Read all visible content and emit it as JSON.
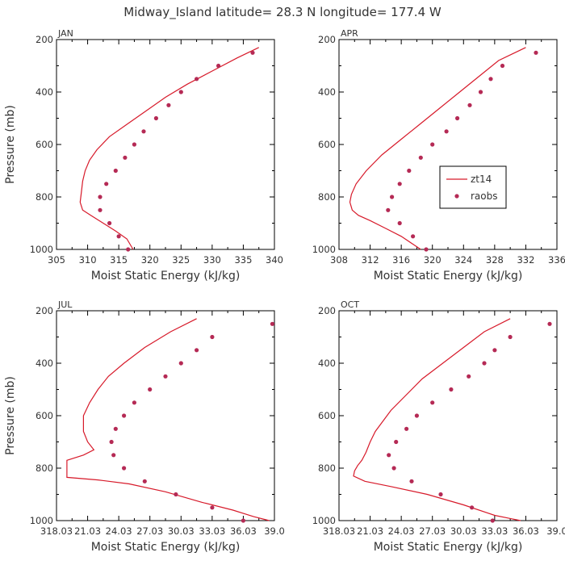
{
  "title": "Midway_Island  latitude= 28.3 N longitude= 177.4 W",
  "legend": {
    "model": "zt14",
    "obs": "raobs",
    "panel": 1
  },
  "colors": {
    "model": "#d71a2a",
    "obs": "#b52a55"
  },
  "chart_data": [
    {
      "type": "line",
      "panel": "JAN",
      "xlabel": "Moist Static Energy (kJ/kg)",
      "ylabel": "Pressure (mb)",
      "xlim": [
        305,
        340
      ],
      "xticks": [
        305,
        310,
        315,
        320,
        325,
        330,
        335,
        340
      ],
      "xtick_labels": [
        "305",
        "310",
        "315",
        "320",
        "325",
        "330",
        "335",
        "340"
      ],
      "ylim": [
        200,
        1000
      ],
      "yticks": [
        200,
        400,
        600,
        800,
        1000
      ],
      "ytick_labels": [
        "200",
        "400",
        "600",
        "800",
        "1000"
      ],
      "series": [
        {
          "name": "zt14",
          "kind": "line",
          "x": [
            337.5,
            334,
            330,
            326,
            322.5,
            319.5,
            316.5,
            313.5,
            311.5,
            310.3,
            309.6,
            309.2,
            309.0,
            308.8,
            309.2,
            310.5,
            312.5,
            314.5,
            316.3,
            317.3
          ],
          "y": [
            230,
            270,
            320,
            370,
            420,
            470,
            520,
            570,
            620,
            660,
            700,
            740,
            780,
            820,
            850,
            870,
            900,
            930,
            960,
            1000
          ]
        },
        {
          "name": "raobs",
          "kind": "scatter",
          "x": [
            336.5,
            331,
            327.5,
            325,
            323,
            321,
            319,
            317.5,
            316,
            314.5,
            313,
            312,
            312,
            313.5,
            315,
            316.5
          ],
          "y": [
            250,
            300,
            350,
            400,
            450,
            500,
            550,
            600,
            650,
            700,
            750,
            800,
            850,
            900,
            950,
            1000
          ]
        }
      ]
    },
    {
      "type": "line",
      "panel": "APR",
      "xlabel": "Moist Static Energy (kJ/kg)",
      "ylabel": "",
      "xlim": [
        308,
        336
      ],
      "xticks": [
        308,
        312,
        316,
        320,
        324,
        328,
        332,
        336
      ],
      "xtick_labels": [
        "308",
        "312",
        "316",
        "320",
        "324",
        "328",
        "332",
        "336"
      ],
      "ylim": [
        200,
        1000
      ],
      "yticks": [
        200,
        400,
        600,
        800,
        1000
      ],
      "ytick_labels": [
        "200",
        "400",
        "600",
        "800",
        "1000"
      ],
      "series": [
        {
          "name": "zt14",
          "kind": "line",
          "x": [
            332,
            328.5,
            326,
            323.5,
            321,
            318.5,
            316,
            313.5,
            311.5,
            310.2,
            309.6,
            309.4,
            309.7,
            310.5,
            312,
            314,
            316,
            317.5,
            318.5
          ],
          "y": [
            230,
            280,
            340,
            400,
            460,
            520,
            580,
            640,
            700,
            750,
            790,
            820,
            850,
            870,
            890,
            920,
            950,
            980,
            1000
          ]
        },
        {
          "name": "raobs",
          "kind": "scatter",
          "x": [
            333.3,
            329,
            327.5,
            326.2,
            324.8,
            323.2,
            321.8,
            320,
            318.5,
            317,
            315.8,
            314.8,
            314.3,
            315.8,
            317.5,
            319.2
          ],
          "y": [
            250,
            300,
            350,
            400,
            450,
            500,
            550,
            600,
            650,
            700,
            750,
            800,
            850,
            900,
            950,
            1000
          ]
        }
      ]
    },
    {
      "type": "line",
      "panel": "JUL",
      "xlabel": "Moist Static Energy (kJ/kg)",
      "ylabel": "Pressure (mb)",
      "xlim": [
        318.0,
        339.0
      ],
      "xticks": [
        318.0,
        321.0,
        324.0,
        327.0,
        330.0,
        333.0,
        336.0,
        339.0
      ],
      "xtick_labels": [
        "318.03",
        "21.03",
        "24.03",
        "27.03",
        "30.03",
        "33.03",
        "36.03",
        "39.0"
      ],
      "ylim": [
        200,
        1000
      ],
      "yticks": [
        200,
        400,
        600,
        800,
        1000
      ],
      "ytick_labels": [
        "200",
        "400",
        "600",
        "800",
        "1000"
      ],
      "series": [
        {
          "name": "zt14",
          "kind": "line",
          "x": [
            331.5,
            329,
            326.5,
            324.5,
            323,
            322,
            321.2,
            320.6,
            320.6,
            321.0,
            321.6,
            320.6,
            319.0,
            319.0,
            322.0,
            325.0,
            328.5,
            332,
            335,
            337,
            338.5
          ],
          "y": [
            230,
            280,
            340,
            400,
            450,
            500,
            550,
            600,
            660,
            700,
            730,
            750,
            770,
            835,
            845,
            860,
            890,
            930,
            960,
            985,
            1000
          ]
        },
        {
          "name": "raobs",
          "kind": "scatter",
          "x": [
            338.8,
            333.0,
            331.5,
            330.0,
            328.5,
            327.0,
            325.5,
            324.5,
            323.7,
            323.3,
            323.5,
            324.5,
            326.5,
            329.5,
            333.0,
            336.0
          ],
          "y": [
            250,
            300,
            350,
            400,
            450,
            500,
            550,
            600,
            650,
            700,
            750,
            800,
            850,
            900,
            950,
            1000
          ]
        }
      ]
    },
    {
      "type": "line",
      "panel": "OCT",
      "xlabel": "Moist Static Energy (kJ/kg)",
      "ylabel": "",
      "xlim": [
        318.0,
        339.0
      ],
      "xticks": [
        318.0,
        321.0,
        324.0,
        327.0,
        330.0,
        333.0,
        336.0,
        339.0
      ],
      "xtick_labels": [
        "318.03",
        "21.03",
        "24.03",
        "27.03",
        "30.03",
        "33.03",
        "36.03",
        "39.0"
      ],
      "ylim": [
        200,
        1000
      ],
      "yticks": [
        200,
        400,
        600,
        800,
        1000
      ],
      "ytick_labels": [
        "200",
        "400",
        "600",
        "800",
        "1000"
      ],
      "series": [
        {
          "name": "zt14",
          "kind": "line",
          "x": [
            334.5,
            332,
            330,
            328,
            326,
            324.5,
            323,
            321.5,
            321.0,
            320.6,
            320.2,
            319.8,
            319.5,
            319.4,
            320.5,
            323,
            326.5,
            330,
            333,
            335.5
          ],
          "y": [
            230,
            280,
            340,
            400,
            460,
            520,
            580,
            660,
            700,
            740,
            770,
            790,
            810,
            830,
            850,
            870,
            900,
            940,
            980,
            1000
          ]
        },
        {
          "name": "raobs",
          "kind": "scatter",
          "x": [
            338.3,
            334.5,
            333.0,
            332.0,
            330.5,
            328.8,
            327.0,
            325.5,
            324.5,
            323.5,
            322.8,
            323.3,
            325.0,
            327.8,
            330.8,
            332.8
          ],
          "y": [
            250,
            300,
            350,
            400,
            450,
            500,
            550,
            600,
            650,
            700,
            750,
            800,
            850,
            900,
            950,
            1000
          ]
        }
      ]
    }
  ]
}
